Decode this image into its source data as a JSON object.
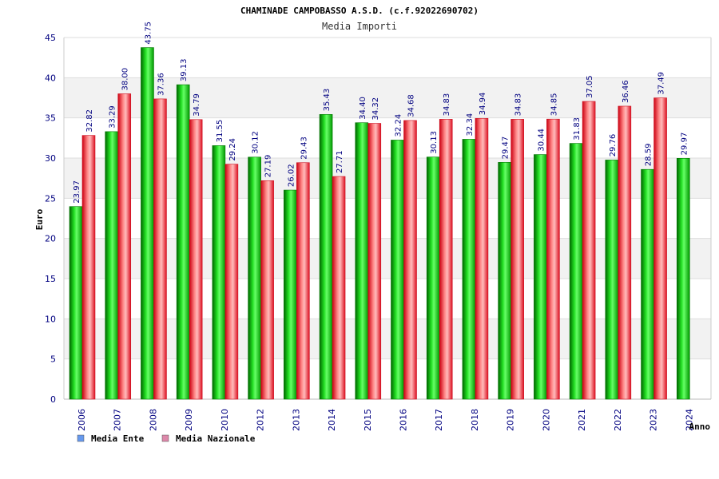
{
  "chart_data": {
    "type": "bar",
    "title": "CHAMINADE CAMPOBASSO A.S.D. (c.f.92022690702)",
    "subtitle": "Media Importi",
    "xlabel": "Anno",
    "ylabel": "Euro",
    "ylim": [
      0,
      45
    ],
    "yticks": [
      0,
      5,
      10,
      15,
      20,
      25,
      30,
      35,
      40,
      45
    ],
    "grid": true,
    "legend_position": "bottom-left",
    "categories": [
      "2006",
      "2007",
      "2008",
      "2009",
      "2010",
      "2012",
      "2013",
      "2014",
      "2015",
      "2016",
      "2017",
      "2018",
      "2019",
      "2020",
      "2021",
      "2022",
      "2023",
      "2024"
    ],
    "series": [
      {
        "name": "Media Ente",
        "color": "#00aa00",
        "legend_color": "#6699ee",
        "values": [
          23.97,
          33.29,
          43.75,
          39.13,
          31.55,
          30.12,
          26.02,
          35.43,
          34.4,
          32.24,
          30.13,
          32.34,
          29.47,
          30.44,
          31.83,
          29.76,
          28.59,
          29.97
        ],
        "labels": [
          "23.97",
          "33.29",
          "43.75",
          "39.13",
          "31.55",
          "30.12",
          "26.02",
          "35.43",
          "34.40",
          "32.24",
          "30.13",
          "32.34",
          "29.47",
          "30.44",
          "31.83",
          "29.76",
          "28.59",
          "29.97"
        ]
      },
      {
        "name": "Media Nazionale",
        "color": "#ee2233",
        "legend_color": "#dd88aa",
        "values": [
          32.82,
          38.0,
          37.36,
          34.79,
          29.24,
          27.19,
          29.43,
          27.71,
          34.32,
          34.68,
          34.83,
          34.94,
          34.83,
          34.85,
          37.05,
          36.46,
          37.49,
          null
        ],
        "labels": [
          "32.82",
          "38.00",
          "37.36",
          "34.79",
          "29.24",
          "27.19",
          "29.43",
          "27.71",
          "34.32",
          "34.68",
          "34.83",
          "34.94",
          "34.83",
          "34.85",
          "37.05",
          "36.46",
          "37.49",
          null
        ]
      }
    ]
  }
}
